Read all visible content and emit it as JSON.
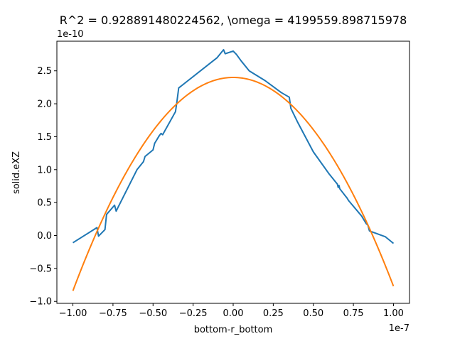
{
  "chart_data": {
    "type": "line",
    "title": "R^2 = 0.928891480224562, \\omega = 4199559.898715978",
    "xlabel": "bottom-r_bottom",
    "ylabel": "solid.eXZ",
    "x_offset_label": "1e-7",
    "y_offset_label": "1e-10",
    "xlim": [
      -1.1,
      1.1
    ],
    "ylim": [
      -1.03,
      2.95
    ],
    "x_ticks": [
      -1.0,
      -0.75,
      -0.5,
      -0.25,
      0.0,
      0.25,
      0.5,
      0.75,
      1.0
    ],
    "x_tick_labels": [
      "−1.00",
      "−0.75",
      "−0.50",
      "−0.25",
      "0.00",
      "0.25",
      "0.50",
      "0.75",
      "1.00"
    ],
    "y_ticks": [
      -1.0,
      -0.5,
      0.0,
      0.5,
      1.0,
      1.5,
      2.0,
      2.5
    ],
    "y_tick_labels": [
      "−1.0",
      "−0.5",
      "0.0",
      "0.5",
      "1.0",
      "1.5",
      "2.0",
      "2.5"
    ],
    "grid": false,
    "series": [
      {
        "color": "#1f77b4",
        "x": [
          -1.0,
          -0.85,
          -0.84,
          -0.8,
          -0.79,
          -0.74,
          -0.73,
          -0.72,
          -0.6,
          -0.56,
          -0.55,
          -0.5,
          -0.49,
          -0.46,
          -0.45,
          -0.44,
          -0.36,
          -0.35,
          -0.34,
          -0.1,
          -0.06,
          -0.05,
          0.0,
          0.02,
          0.05,
          0.1,
          0.2,
          0.3,
          0.35,
          0.36,
          0.4,
          0.5,
          0.6,
          0.65,
          0.655,
          0.66,
          0.665,
          0.7,
          0.71,
          0.72,
          0.8,
          0.83,
          0.84,
          0.85,
          0.95,
          1.0
        ],
        "y": [
          -0.11,
          0.12,
          -0.01,
          0.09,
          0.32,
          0.46,
          0.37,
          0.42,
          1.0,
          1.12,
          1.2,
          1.3,
          1.4,
          1.52,
          1.55,
          1.53,
          1.88,
          2.05,
          2.24,
          2.7,
          2.82,
          2.76,
          2.8,
          2.75,
          2.65,
          2.5,
          2.35,
          2.17,
          2.1,
          1.93,
          1.73,
          1.27,
          0.93,
          0.78,
          0.73,
          0.76,
          0.71,
          0.6,
          0.57,
          0.53,
          0.3,
          0.18,
          0.16,
          0.07,
          -0.02,
          -0.12
        ]
      },
      {
        "color": "#ff7f0e",
        "vertex": [
          0.0,
          2.4
        ],
        "x_range": [
          -1.0,
          1.0
        ],
        "y_at_ends": [
          -0.84,
          -0.77
        ]
      }
    ]
  }
}
